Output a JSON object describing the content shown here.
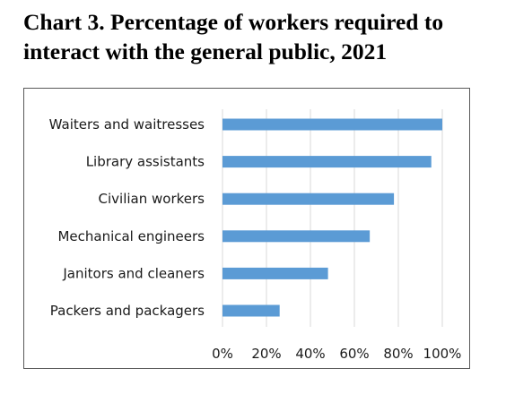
{
  "chart_data": {
    "type": "bar",
    "orientation": "horizontal",
    "title": "Chart 3. Percentage of workers required to interact with the general public, 2021",
    "categories": [
      "Waiters and waitresses",
      "Library assistants",
      "Civilian workers",
      "Mechanical engineers",
      "Janitors and cleaners",
      "Packers and packagers"
    ],
    "values": [
      100,
      95,
      78,
      67,
      48,
      26
    ],
    "xlim": [
      0,
      100
    ],
    "xticks": [
      "0%",
      "20%",
      "40%",
      "60%",
      "80%",
      "100%"
    ],
    "grid": true,
    "bar_color": "#5b9bd5",
    "grid_color": "#d9d9d9"
  }
}
